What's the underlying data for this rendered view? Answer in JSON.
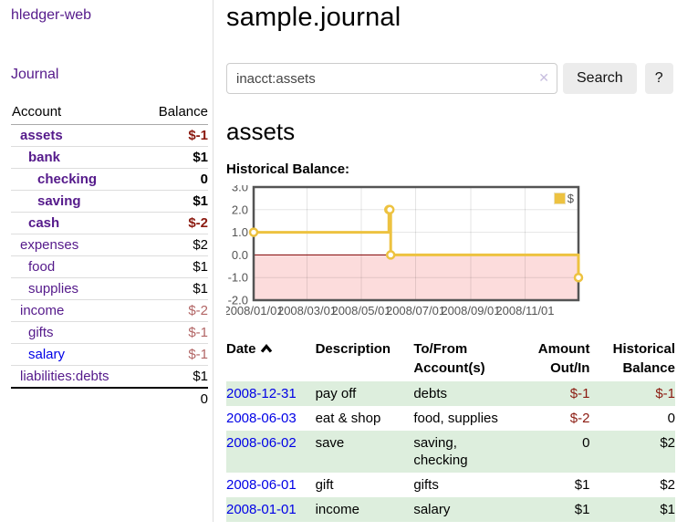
{
  "app": {
    "title": "hledger-web"
  },
  "sidebar": {
    "journal_link": "Journal",
    "accounts_table": {
      "headers": {
        "account": "Account",
        "balance": "Balance"
      },
      "rows": [
        {
          "name": "assets",
          "balance": "$-1",
          "depth": 1,
          "bold": true,
          "balance_style": "neg-strong",
          "link": "visited"
        },
        {
          "name": "bank",
          "balance": "$1",
          "depth": 2,
          "bold": true,
          "balance_style": "normal",
          "link": "visited"
        },
        {
          "name": "checking",
          "balance": "0",
          "depth": 3,
          "bold": true,
          "balance_style": "normal",
          "link": "visited"
        },
        {
          "name": "saving",
          "balance": "$1",
          "depth": 3,
          "bold": true,
          "balance_style": "normal",
          "link": "visited"
        },
        {
          "name": "cash",
          "balance": "$-2",
          "depth": 2,
          "bold": true,
          "balance_style": "neg-strong",
          "link": "visited"
        },
        {
          "name": "expenses",
          "balance": "$2",
          "depth": 1,
          "bold": false,
          "balance_style": "normal",
          "link": "visited"
        },
        {
          "name": "food",
          "balance": "$1",
          "depth": 2,
          "bold": false,
          "balance_style": "normal",
          "link": "visited"
        },
        {
          "name": "supplies",
          "balance": "$1",
          "depth": 2,
          "bold": false,
          "balance_style": "normal",
          "link": "visited"
        },
        {
          "name": "income",
          "balance": "$-2",
          "depth": 1,
          "bold": false,
          "balance_style": "neg-soft",
          "link": "visited"
        },
        {
          "name": "gifts",
          "balance": "$-1",
          "depth": 2,
          "bold": false,
          "balance_style": "neg-soft",
          "link": "visited"
        },
        {
          "name": "salary",
          "balance": "$-1",
          "depth": 2,
          "bold": false,
          "balance_style": "neg-soft",
          "link": "unvisited"
        },
        {
          "name": "liabilities:debts",
          "balance": "$1",
          "depth": 1,
          "bold": false,
          "balance_style": "normal",
          "link": "visited"
        }
      ],
      "total": "0"
    }
  },
  "header": {
    "title": "sample.journal"
  },
  "search": {
    "value": "inacct:assets",
    "clear_icon": "✕",
    "button": "Search",
    "help_button": "?"
  },
  "account_page": {
    "heading": "assets",
    "chart_label": "Historical Balance:"
  },
  "chart_data": {
    "type": "line",
    "style": "step-after",
    "title": "Historical Balance",
    "legend": "$",
    "legend_position": "top-right",
    "grid": true,
    "ylim": [
      -2,
      3
    ],
    "xlim_days": [
      0,
      365
    ],
    "y_ticks": [
      {
        "label": "3.0",
        "value": 3
      },
      {
        "label": "2.0",
        "value": 2
      },
      {
        "label": "1.0",
        "value": 1
      },
      {
        "label": "0.0",
        "value": 0
      },
      {
        "label": "-1.0",
        "value": -1
      },
      {
        "label": "-2.0",
        "value": -2
      }
    ],
    "x_ticks": [
      {
        "label": "2008/01/01",
        "day": 0
      },
      {
        "label": "2008/03/01",
        "day": 60
      },
      {
        "label": "2008/05/01",
        "day": 121
      },
      {
        "label": "2008/07/01",
        "day": 182
      },
      {
        "label": "2008/09/01",
        "day": 244
      },
      {
        "label": "2008/11/01",
        "day": 305
      }
    ],
    "series": [
      {
        "name": "$",
        "color": "#edc240",
        "points": [
          {
            "date": "2008/01/01",
            "day": 0,
            "value": 1
          },
          {
            "date": "2008/06/01",
            "day": 152,
            "value": 2
          },
          {
            "date": "2008/06/02",
            "day": 153,
            "value": 2
          },
          {
            "date": "2008/06/03",
            "day": 154,
            "value": 0
          },
          {
            "date": "2008/12/31",
            "day": 365,
            "value": -1
          }
        ]
      }
    ],
    "negative_region_color": "#fcdcdc",
    "zero_line_color": "#800000",
    "border_color": "#545454",
    "grid_color": "#e3e3e3",
    "tick_color": "#545454"
  },
  "register_table": {
    "headers": {
      "date": "Date",
      "description": "Description",
      "accounts": "To/From Account(s)",
      "amount": "Amount Out/In",
      "balance": "Historical Balance"
    },
    "rows": [
      {
        "date": "2008-12-31",
        "description": "pay off",
        "accounts": "debts",
        "amount": "$-1",
        "balance": "$-1"
      },
      {
        "date": "2008-06-03",
        "description": "eat & shop",
        "accounts": "food, supplies",
        "amount": "$-2",
        "balance": "0"
      },
      {
        "date": "2008-06-02",
        "description": "save",
        "accounts": "saving,\nchecking",
        "amount": "0",
        "balance": "$2"
      },
      {
        "date": "2008-06-01",
        "description": "gift",
        "accounts": "gifts",
        "amount": "$1",
        "balance": "$2"
      },
      {
        "date": "2008-01-01",
        "description": "income",
        "accounts": "salary",
        "amount": "$1",
        "balance": "$1"
      }
    ]
  },
  "colors": {
    "link_visited": "#551A8B",
    "link_unvisited": "#0000e6",
    "negative_strong": "#8b1a10",
    "negative_soft": "#b26565",
    "row_stripe_green": "#ddeedd",
    "series_gold": "#edc240"
  }
}
